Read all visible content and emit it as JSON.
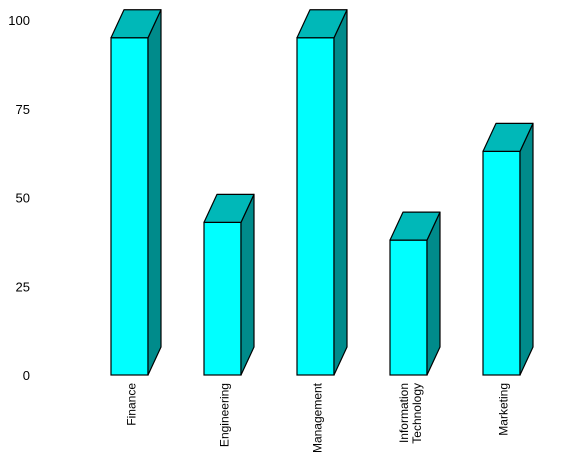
{
  "chart_data": {
    "type": "bar",
    "title": "",
    "xlabel": "",
    "ylabel": "",
    "ylim": [
      0,
      100
    ],
    "yticks": [
      "0",
      "25",
      "50",
      "75",
      "100"
    ],
    "categories": [
      [
        "Finance"
      ],
      [
        "Engineering"
      ],
      [
        "Management"
      ],
      [
        "Information",
        "Technology"
      ],
      [
        "Marketing"
      ]
    ],
    "values": [
      95,
      43,
      95,
      38,
      63
    ],
    "grid": false,
    "legend": "none",
    "style": "3d",
    "colors": {
      "front": "#00ffff",
      "top": "#00b8b8",
      "side": "#008b8b",
      "stroke": "#000000"
    }
  }
}
